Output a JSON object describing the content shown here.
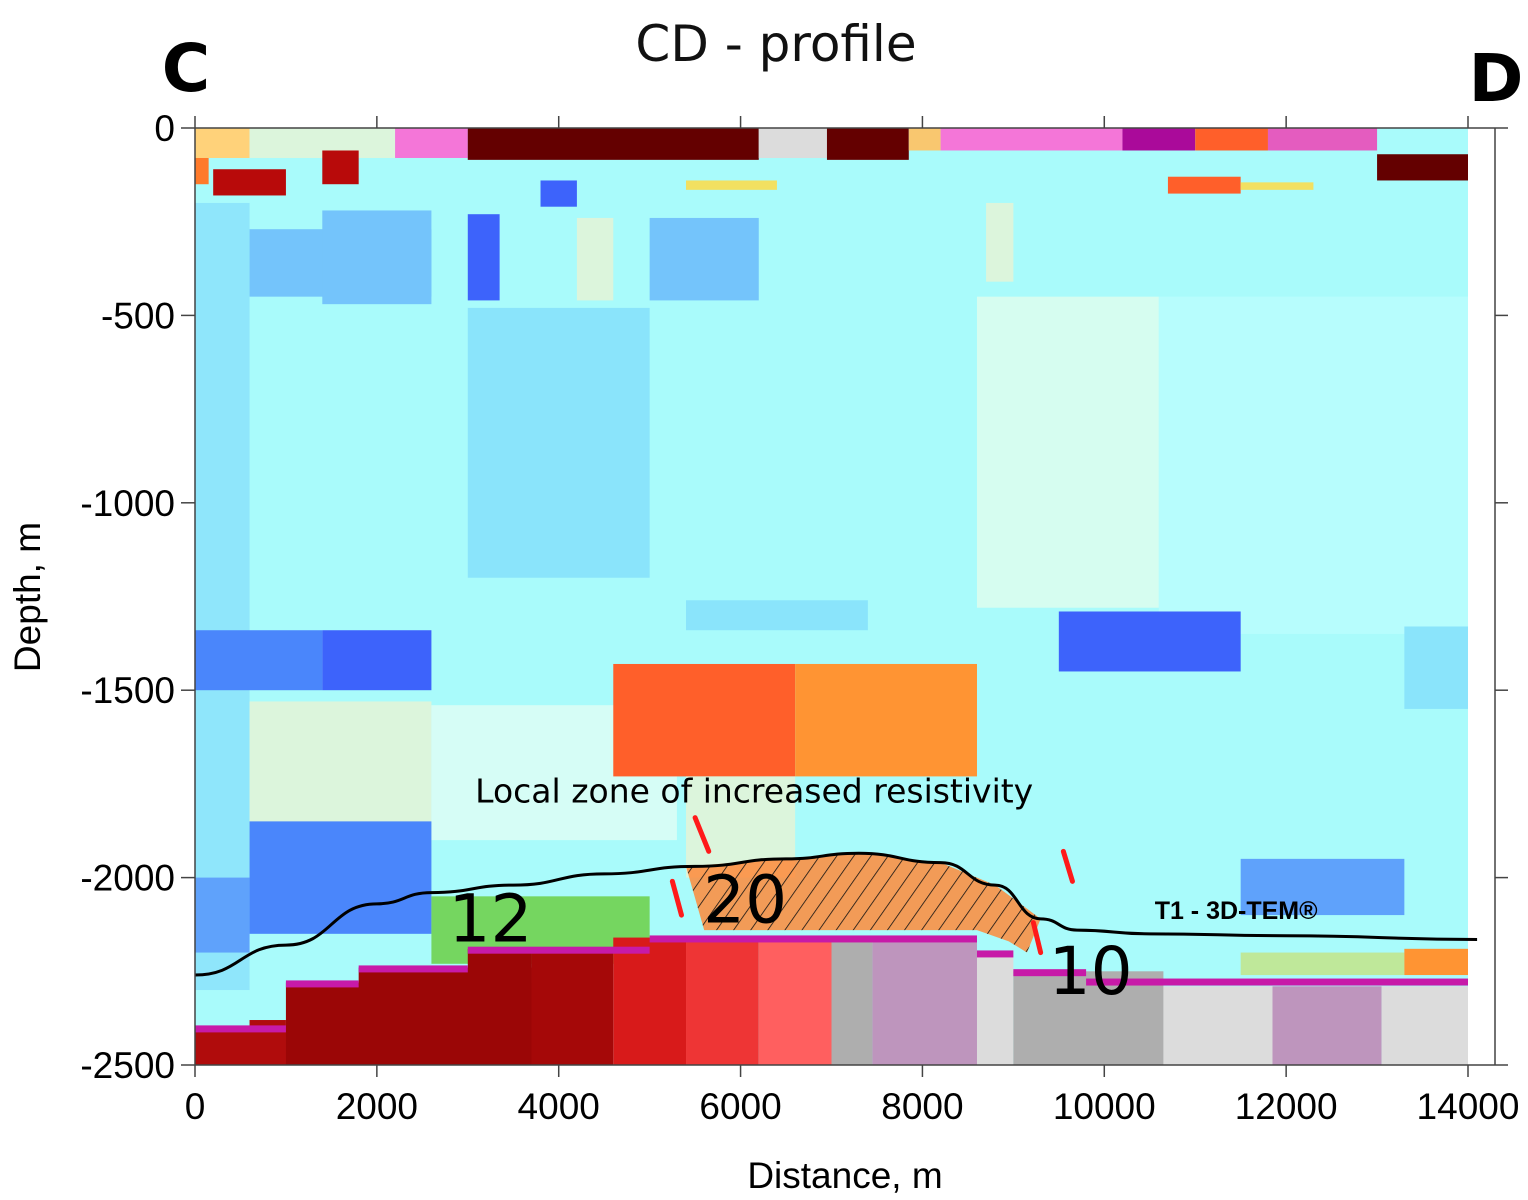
{
  "chart_data": {
    "type": "heatmap",
    "title": "CD - profile",
    "corner_labels": {
      "left": "C",
      "right": "D"
    },
    "xlabel": "Distance, m",
    "ylabel": "Depth, m",
    "xlim": [
      0,
      14000
    ],
    "ylim": [
      -2500,
      0
    ],
    "x_ticks": [
      0,
      2000,
      4000,
      6000,
      8000,
      10000,
      12000,
      14000
    ],
    "x_tick_labels": [
      "0",
      "2000",
      "4000",
      "6000",
      "8000",
      "10000",
      "12000",
      "14000"
    ],
    "y_ticks": [
      0,
      -500,
      -1000,
      -1500,
      -2000,
      -2500
    ],
    "y_tick_labels": [
      "0",
      "-500",
      "-1000",
      "-1500",
      "-2000",
      "-2500"
    ],
    "grid": false,
    "background_color": "#a6fcfc",
    "blocks": [
      {
        "x0": 0,
        "x1": 14000,
        "y0": -2500,
        "y1": 0,
        "color": "#a9fbfb"
      },
      {
        "x0": 0,
        "x1": 600,
        "y0": -2300,
        "y1": -200,
        "color": "#8fe6fb"
      },
      {
        "x0": 600,
        "x1": 2600,
        "y0": -450,
        "y1": -270,
        "color": "#74c4fb"
      },
      {
        "x0": 1400,
        "x1": 2600,
        "y0": -470,
        "y1": -220,
        "color": "#74c4fb"
      },
      {
        "x0": 3000,
        "x1": 3350,
        "y0": -460,
        "y1": -230,
        "color": "#3d63fb"
      },
      {
        "x0": 4200,
        "x1": 4600,
        "y0": -460,
        "y1": -240,
        "color": "#dcf5dc"
      },
      {
        "x0": 5000,
        "x1": 6200,
        "y0": -460,
        "y1": -240,
        "color": "#74c4fb"
      },
      {
        "x0": 3000,
        "x1": 5000,
        "y0": -1200,
        "y1": -480,
        "color": "#8ae4fb"
      },
      {
        "x0": 8700,
        "x1": 9000,
        "y0": -410,
        "y1": -200,
        "color": "#dcf5dc"
      },
      {
        "x0": 8600,
        "x1": 10600,
        "y0": -1280,
        "y1": -450,
        "color": "#d6fdf0"
      },
      {
        "x0": 10600,
        "x1": 14000,
        "y0": -1350,
        "y1": -450,
        "color": "#b7fdfd"
      },
      {
        "x0": 5400,
        "x1": 7400,
        "y0": -1340,
        "y1": -1260,
        "color": "#8ae4fb"
      },
      {
        "x0": 0,
        "x1": 1400,
        "y0": -1500,
        "y1": -1340,
        "color": "#4a86fb"
      },
      {
        "x0": 1400,
        "x1": 2600,
        "y0": -1500,
        "y1": -1340,
        "color": "#3d63fb"
      },
      {
        "x0": 9500,
        "x1": 11500,
        "y0": -1450,
        "y1": -1290,
        "color": "#3d63fb"
      },
      {
        "x0": 13300,
        "x1": 14000,
        "y0": -1550,
        "y1": -1330,
        "color": "#8ae4fb"
      },
      {
        "x0": 600,
        "x1": 2600,
        "y0": -1920,
        "y1": -1530,
        "color": "#dcf5dc"
      },
      {
        "x0": 2600,
        "x1": 5300,
        "y0": -1900,
        "y1": -1540,
        "color": "#d6fdf6"
      },
      {
        "x0": 4600,
        "x1": 6600,
        "y0": -1730,
        "y1": -1430,
        "color": "#ff5f2a"
      },
      {
        "x0": 6600,
        "x1": 8600,
        "y0": -1730,
        "y1": -1430,
        "color": "#ff9433"
      },
      {
        "x0": 5400,
        "x1": 6600,
        "y0": -2000,
        "y1": -1730,
        "color": "#dcf5dc"
      },
      {
        "x0": 0,
        "x1": 600,
        "y0": -2200,
        "y1": -2000,
        "color": "#5fa2fb"
      },
      {
        "x0": 600,
        "x1": 2600,
        "y0": -2150,
        "y1": -1850,
        "color": "#4a86fb"
      },
      {
        "x0": 11500,
        "x1": 13300,
        "y0": -2100,
        "y1": -1950,
        "color": "#5fa2fb"
      },
      {
        "x0": 2600,
        "x1": 5000,
        "y0": -2230,
        "y1": -2050,
        "color": "#75d660"
      },
      {
        "x0": 11500,
        "x1": 13300,
        "y0": -2260,
        "y1": -2200,
        "color": "#bfe89a"
      },
      {
        "x0": 13300,
        "x1": 14000,
        "y0": -2260,
        "y1": -2190,
        "color": "#ff9433"
      },
      {
        "x0": 0,
        "x1": 1000,
        "y0": -2500,
        "y1": -2400,
        "color": "#b00c0c"
      },
      {
        "x0": 600,
        "x1": 1000,
        "y0": -2500,
        "y1": -2380,
        "color": "#b00c0c"
      },
      {
        "x0": 1000,
        "x1": 3700,
        "y0": -2500,
        "y1": -2280,
        "color": "#9b0606"
      },
      {
        "x0": 1800,
        "x1": 3700,
        "y0": -2500,
        "y1": -2240,
        "color": "#9b0606"
      },
      {
        "x0": 3000,
        "x1": 3700,
        "y0": -2500,
        "y1": -2190,
        "color": "#9b0606"
      },
      {
        "x0": 3700,
        "x1": 4600,
        "y0": -2500,
        "y1": -2190,
        "color": "#a50808"
      },
      {
        "x0": 4600,
        "x1": 5400,
        "y0": -2500,
        "y1": -2160,
        "color": "#d81a1a"
      },
      {
        "x0": 5400,
        "x1": 6200,
        "y0": -2500,
        "y1": -2160,
        "color": "#ee3535"
      },
      {
        "x0": 6200,
        "x1": 7000,
        "y0": -2500,
        "y1": -2160,
        "color": "#ff5f5f"
      },
      {
        "x0": 7000,
        "x1": 7450,
        "y0": -2500,
        "y1": -2160,
        "color": "#aeaeae"
      },
      {
        "x0": 7450,
        "x1": 8600,
        "y0": -2500,
        "y1": -2160,
        "color": "#be95bd"
      },
      {
        "x0": 8600,
        "x1": 9000,
        "y0": -2500,
        "y1": -2200,
        "color": "#dcdcdc"
      },
      {
        "x0": 9000,
        "x1": 10650,
        "y0": -2500,
        "y1": -2250,
        "color": "#aeaeae"
      },
      {
        "x0": 9800,
        "x1": 10650,
        "y0": -2500,
        "y1": -2290,
        "color": "#aeaeae"
      },
      {
        "x0": 10650,
        "x1": 11850,
        "y0": -2500,
        "y1": -2290,
        "color": "#dcdcdc"
      },
      {
        "x0": 11850,
        "x1": 13050,
        "y0": -2500,
        "y1": -2290,
        "color": "#be95bd"
      },
      {
        "x0": 13050,
        "x1": 14000,
        "y0": -2500,
        "y1": -2290,
        "color": "#dcdcdc"
      },
      {
        "x0": 0,
        "x1": 600,
        "y0": -80,
        "y1": 0,
        "color": "#ffd27a"
      },
      {
        "x0": 0,
        "x1": 150,
        "y0": -150,
        "y1": -80,
        "color": "#ff7a2a"
      },
      {
        "x0": 2200,
        "x1": 3000,
        "y0": -80,
        "y1": 0,
        "color": "#f476d8"
      },
      {
        "x0": 600,
        "x1": 2200,
        "y0": -80,
        "y1": 0,
        "color": "#dcf5dc"
      },
      {
        "x0": 3000,
        "x1": 6200,
        "y0": -85,
        "y1": 0,
        "color": "#640000"
      },
      {
        "x0": 6200,
        "x1": 6950,
        "y0": -80,
        "y1": 0,
        "color": "#dcdcdc"
      },
      {
        "x0": 6950,
        "x1": 7850,
        "y0": -85,
        "y1": 0,
        "color": "#640000"
      },
      {
        "x0": 7850,
        "x1": 8200,
        "y0": -60,
        "y1": 0,
        "color": "#f9c76f"
      },
      {
        "x0": 8200,
        "x1": 10200,
        "y0": -60,
        "y1": 0,
        "color": "#f476d8"
      },
      {
        "x0": 10200,
        "x1": 11000,
        "y0": -60,
        "y1": 0,
        "color": "#aa0a9a"
      },
      {
        "x0": 11000,
        "x1": 11800,
        "y0": -60,
        "y1": 0,
        "color": "#ff5f2a"
      },
      {
        "x0": 11800,
        "x1": 13000,
        "y0": -60,
        "y1": 0,
        "color": "#e45cbf"
      },
      {
        "x0": 200,
        "x1": 1000,
        "y0": -180,
        "y1": -110,
        "color": "#b80a0a"
      },
      {
        "x0": 1400,
        "x1": 1800,
        "y0": -150,
        "y1": -60,
        "color": "#b80a0a"
      },
      {
        "x0": 3800,
        "x1": 4200,
        "y0": -210,
        "y1": -140,
        "color": "#3d63fb"
      },
      {
        "x0": 5400,
        "x1": 6400,
        "y0": -165,
        "y1": -140,
        "color": "#f2e061"
      },
      {
        "x0": 10700,
        "x1": 11500,
        "y0": -175,
        "y1": -130,
        "color": "#ff5f2a"
      },
      {
        "x0": 11500,
        "x1": 12300,
        "y0": -165,
        "y1": -145,
        "color": "#f2e061"
      },
      {
        "x0": 13000,
        "x1": 14000,
        "y0": -140,
        "y1": -70,
        "color": "#640000"
      }
    ],
    "boundary_line": {
      "label": "T1 - 3D-TEM®",
      "points": [
        [
          0,
          -2260
        ],
        [
          1000,
          -2180
        ],
        [
          2000,
          -2070
        ],
        [
          2600,
          -2040
        ],
        [
          3500,
          -2020
        ],
        [
          4500,
          -1990
        ],
        [
          5500,
          -1970
        ],
        [
          6500,
          -1950
        ],
        [
          7300,
          -1935
        ],
        [
          8200,
          -1960
        ],
        [
          8800,
          -2020
        ],
        [
          9300,
          -2110
        ],
        [
          9700,
          -2140
        ],
        [
          10500,
          -2150
        ],
        [
          12000,
          -2155
        ],
        [
          14100,
          -2165
        ]
      ]
    },
    "hatched_zone": {
      "label": "Local zone of increased resistivity",
      "points": [
        [
          5400,
          -1970
        ],
        [
          6500,
          -1950
        ],
        [
          7300,
          -1935
        ],
        [
          8200,
          -1960
        ],
        [
          8800,
          -2020
        ],
        [
          9300,
          -2110
        ],
        [
          9150,
          -2200
        ],
        [
          8950,
          -2170
        ],
        [
          8600,
          -2140
        ],
        [
          5600,
          -2140
        ]
      ]
    },
    "fault_marks": [
      {
        "x0": 5650,
        "y0": -1930,
        "x1": 5500,
        "y1": -1840
      },
      {
        "x0": 5350,
        "y0": -2100,
        "x1": 5250,
        "y1": -2010
      },
      {
        "x0": 9650,
        "y0": -2010,
        "x1": 9550,
        "y1": -1930
      },
      {
        "x0": 9300,
        "y0": -2200,
        "x1": 9220,
        "y1": -2120
      }
    ],
    "annotations": [
      {
        "text": "Local zone of increased resistivity",
        "x": 6150,
        "y": -1800
      },
      {
        "text": "12",
        "x": 3250,
        "y": -2170
      },
      {
        "text": "20",
        "x": 6050,
        "y": -2120
      },
      {
        "text": "10",
        "x": 9850,
        "y": -2310
      },
      {
        "text": "T1 - 3D-TEM®",
        "x": 11450,
        "y": -2110
      }
    ]
  }
}
